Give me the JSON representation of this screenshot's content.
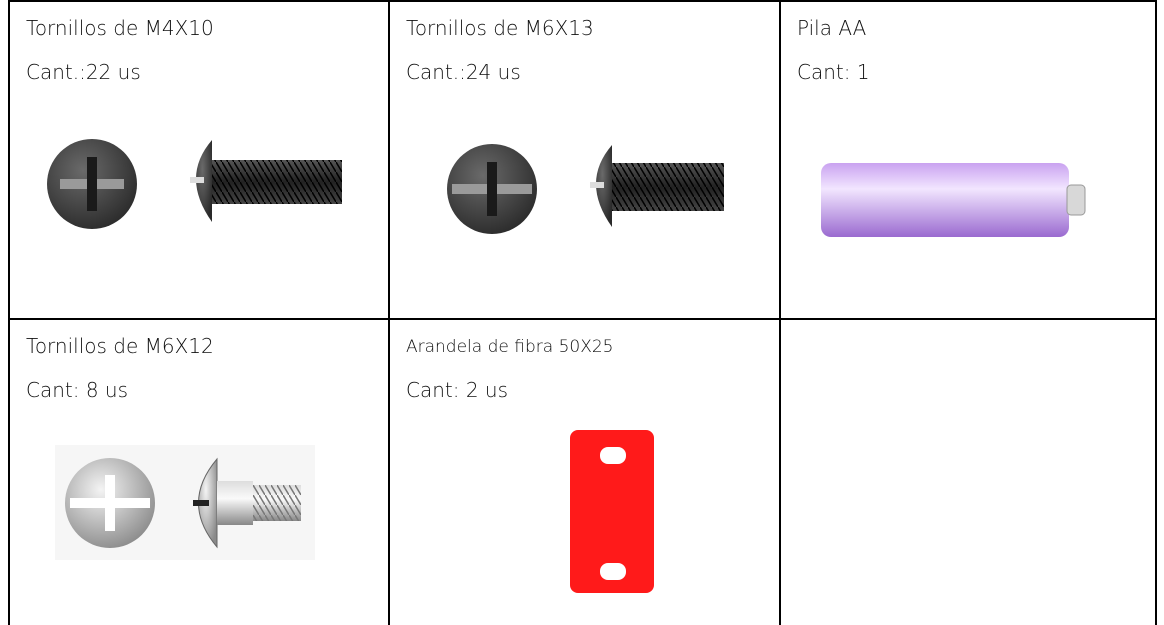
{
  "cells": [
    {
      "title": "Tornillos de M4X10",
      "quantity": "Cant.:22 us"
    },
    {
      "title": "Tornillos de M6X13",
      "quantity": "Cant.:24 us"
    },
    {
      "title": "Pila AA",
      "quantity": "Cant: 1"
    },
    {
      "title": "Tornillos de M6X12",
      "quantity": "Cant: 8 us"
    },
    {
      "title": "Arandela de fibra 50X25",
      "quantity": "Cant: 2 us"
    }
  ]
}
